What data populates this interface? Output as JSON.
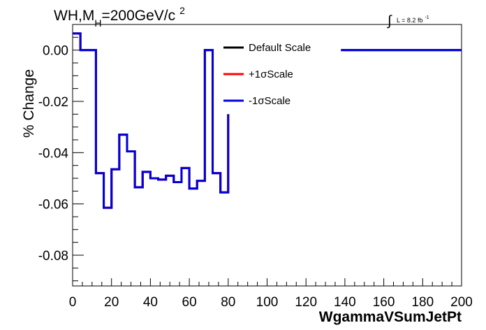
{
  "chart_data": {
    "type": "line",
    "title_parts": {
      "prefix": "WH,M",
      "sub": "H",
      "rest": "=200GeV/c",
      "sup": "2"
    },
    "lumi": {
      "integral": "∫",
      "text": "L = 8.2 fb",
      "sup": "-1"
    },
    "xlabel": "WgammaVSumJetPt",
    "ylabel": "% Change",
    "xlim": [
      0,
      200
    ],
    "ylim": [
      -0.092,
      0.01
    ],
    "xticks": [
      0,
      20,
      40,
      60,
      80,
      100,
      120,
      140,
      160,
      180,
      200
    ],
    "yticks": [
      {
        "v": 0.0,
        "label": "0.00"
      },
      {
        "v": -0.02,
        "label": "-0.02"
      },
      {
        "v": -0.04,
        "label": "-0.04"
      },
      {
        "v": -0.06,
        "label": "-0.06"
      },
      {
        "v": -0.08,
        "label": "-0.08"
      }
    ],
    "legend_position": "top-center",
    "series": [
      {
        "name": "Default Scale",
        "color": "#000000",
        "bins": [
          0,
          4,
          12,
          16,
          20,
          24,
          28,
          32,
          36,
          40,
          44,
          48,
          52,
          56,
          60,
          64,
          68,
          72,
          76,
          80
        ],
        "values": [
          0.0065,
          0.0,
          -0.048,
          -0.0615,
          -0.0465,
          -0.033,
          -0.0395,
          -0.0535,
          -0.0475,
          -0.05,
          -0.0505,
          -0.049,
          -0.0515,
          -0.046,
          -0.054,
          -0.051,
          0.0,
          -0.048,
          -0.0555,
          -0.025
        ],
        "tail": {
          "x": [
            138,
            200
          ],
          "value": 0.0
        }
      },
      {
        "name": "+1σScale",
        "color": "#ff0000",
        "bins": [
          0,
          4,
          12,
          16,
          20,
          24,
          28,
          32,
          36,
          40,
          44,
          48,
          52,
          56,
          60,
          64,
          68,
          72,
          76,
          80
        ],
        "values": [
          0.0065,
          0.0,
          -0.048,
          -0.0615,
          -0.0465,
          -0.033,
          -0.0395,
          -0.0535,
          -0.0475,
          -0.05,
          -0.0505,
          -0.049,
          -0.0515,
          -0.046,
          -0.054,
          -0.051,
          0.0,
          -0.048,
          -0.0555,
          -0.025
        ],
        "tail": {
          "x": [
            138,
            200
          ],
          "value": 0.0
        }
      },
      {
        "name": "-1σScale",
        "color": "#0000dd",
        "bins": [
          0,
          4,
          12,
          16,
          20,
          24,
          28,
          32,
          36,
          40,
          44,
          48,
          52,
          56,
          60,
          64,
          68,
          72,
          76,
          80
        ],
        "values": [
          0.0065,
          0.0,
          -0.048,
          -0.0615,
          -0.0465,
          -0.033,
          -0.0395,
          -0.0535,
          -0.0475,
          -0.05,
          -0.0505,
          -0.049,
          -0.0515,
          -0.046,
          -0.054,
          -0.051,
          0.0,
          -0.048,
          -0.0555,
          -0.025
        ],
        "tail": {
          "x": [
            138,
            200
          ],
          "value": 0.0
        }
      }
    ]
  }
}
